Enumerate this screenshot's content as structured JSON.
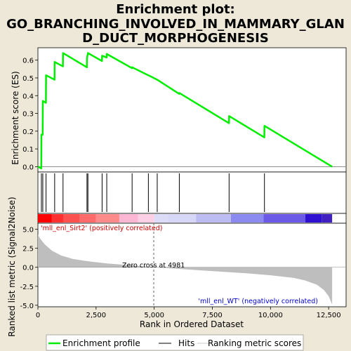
{
  "chart_data": {
    "type": "line",
    "title_lines": [
      "Enrichment plot:",
      "GO_BRANCHING_INVOLVED_IN_MAMMARY_GLAN",
      "D_DUCT_MORPHOGENESIS"
    ],
    "xlabel": "Rank in Ordered Dataset",
    "ylabel_top": "Enrichment score (ES)",
    "ylabel_bottom": "Ranked list metric (Signal2Noise)",
    "xlim": [
      0,
      13250
    ],
    "ylim_top": [
      -0.03,
      0.67
    ],
    "ylim_bottom": [
      -5.2,
      5.8
    ],
    "xticks": [
      0,
      2500,
      5000,
      7500,
      10000,
      12500
    ],
    "xtick_labels": [
      "0",
      "2,500",
      "5,000",
      "7,500",
      "10,000",
      "12,500"
    ],
    "yticks_top": [
      0.0,
      0.1,
      0.2,
      0.3,
      0.4,
      0.5,
      0.6
    ],
    "ytick_labels_top": [
      "0.0",
      "0.1",
      "0.2",
      "0.3",
      "0.4",
      "0.5",
      "0.6"
    ],
    "yticks_bottom": [
      5.0,
      2.5,
      0.0,
      -2.5,
      -5.0
    ],
    "ytick_labels_bottom": [
      "5.0",
      "2.5",
      "0.0",
      "-2.5",
      "-5.0"
    ],
    "hits": [
      150,
      210,
      350,
      720,
      1080,
      2110,
      2150,
      2760,
      2960,
      4050,
      4750,
      5130,
      6080,
      8220,
      9740
    ],
    "es_points": [
      [
        0,
        0.0
      ],
      [
        145,
        -0.01
      ],
      [
        150,
        0.18
      ],
      [
        205,
        0.18
      ],
      [
        210,
        0.37
      ],
      [
        345,
        0.36
      ],
      [
        350,
        0.515
      ],
      [
        715,
        0.49
      ],
      [
        720,
        0.59
      ],
      [
        1075,
        0.565
      ],
      [
        1080,
        0.64
      ],
      [
        2105,
        0.56
      ],
      [
        2110,
        0.61
      ],
      [
        2150,
        0.64
      ],
      [
        2755,
        0.595
      ],
      [
        2760,
        0.625
      ],
      [
        2955,
        0.615
      ],
      [
        2960,
        0.635
      ],
      [
        4045,
        0.555
      ],
      [
        4050,
        0.56
      ],
      [
        4745,
        0.515
      ],
      [
        4750,
        0.515
      ],
      [
        5125,
        0.49
      ],
      [
        5130,
        0.49
      ],
      [
        6075,
        0.41
      ],
      [
        6080,
        0.415
      ],
      [
        8215,
        0.245
      ],
      [
        8220,
        0.285
      ],
      [
        9735,
        0.165
      ],
      [
        9740,
        0.23
      ],
      [
        12650,
        0.0
      ]
    ],
    "metric_points": [
      [
        0,
        4.3
      ],
      [
        100,
        3.75
      ],
      [
        300,
        3.0
      ],
      [
        600,
        2.2
      ],
      [
        1000,
        1.55
      ],
      [
        1500,
        1.1
      ],
      [
        2000,
        0.85
      ],
      [
        3000,
        0.5
      ],
      [
        4000,
        0.27
      ],
      [
        4981,
        0.0
      ],
      [
        6000,
        -0.2
      ],
      [
        7000,
        -0.4
      ],
      [
        8000,
        -0.6
      ],
      [
        9000,
        -0.8
      ],
      [
        10000,
        -1.05
      ],
      [
        11000,
        -1.4
      ],
      [
        11500,
        -1.75
      ],
      [
        12000,
        -2.3
      ],
      [
        12300,
        -3.0
      ],
      [
        12500,
        -3.8
      ],
      [
        12650,
        -4.9
      ]
    ],
    "zero_cross": 4981,
    "zero_cross_label": "Zero cross at 4981",
    "pos_label": "'mll_enl_Sirt2' (positively correlated)",
    "neg_label": "'mll_enl_WT' (negatively correlated)",
    "colorbar": [
      {
        "x0": 0,
        "x1": 600,
        "color": "#ff0000"
      },
      {
        "x0": 600,
        "x1": 1100,
        "color": "#ff3030"
      },
      {
        "x0": 1100,
        "x1": 1800,
        "color": "#ff5050"
      },
      {
        "x0": 1800,
        "x1": 2500,
        "color": "#ff6a6a"
      },
      {
        "x0": 2500,
        "x1": 3500,
        "color": "#ff8a8a"
      },
      {
        "x0": 3500,
        "x1": 4300,
        "color": "#ffb6d2"
      },
      {
        "x0": 4300,
        "x1": 5000,
        "color": "#ffcfe6"
      },
      {
        "x0": 5000,
        "x1": 5600,
        "color": "#dcdcf8"
      },
      {
        "x0": 5600,
        "x1": 6800,
        "color": "#d6d6f6"
      },
      {
        "x0": 6800,
        "x1": 8300,
        "color": "#bcbcf2"
      },
      {
        "x0": 8300,
        "x1": 9700,
        "color": "#8a8af0"
      },
      {
        "x0": 9700,
        "x1": 11500,
        "color": "#6a5ae6"
      },
      {
        "x0": 11500,
        "x1": 12200,
        "color": "#2e10d0"
      },
      {
        "x0": 12200,
        "x1": 12650,
        "color": "#4020c0"
      }
    ],
    "colors": {
      "es_line": "#00ee00",
      "hit": "#000000",
      "metric_fill": "#bebebe",
      "pos_label": "#cc0000",
      "neg_label": "#0000cc",
      "background": "#ede8d8"
    }
  },
  "legend": {
    "items": [
      {
        "label": "Enrichment profile",
        "kind": "line",
        "color": "#00ee00"
      },
      {
        "label": "Hits",
        "kind": "line",
        "color": "#000000"
      },
      {
        "label": "Ranking metric scores",
        "kind": "line",
        "color": "#c8c8c8"
      }
    ]
  }
}
